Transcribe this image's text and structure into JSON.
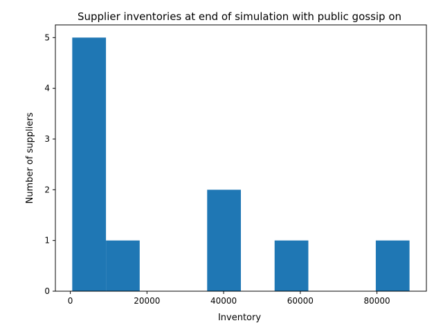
{
  "chart_data": {
    "type": "bar",
    "subtype": "histogram",
    "title": "Supplier inventories at end of simulation with public gossip on",
    "xlabel": "Inventory",
    "ylabel": "Number of suppliers",
    "bins": [
      {
        "start": 500,
        "end": 9300,
        "count": 5
      },
      {
        "start": 9300,
        "end": 18100,
        "count": 1
      },
      {
        "start": 18100,
        "end": 26900,
        "count": 0
      },
      {
        "start": 26900,
        "end": 35700,
        "count": 0
      },
      {
        "start": 35700,
        "end": 44500,
        "count": 2
      },
      {
        "start": 44500,
        "end": 53300,
        "count": 0
      },
      {
        "start": 53300,
        "end": 62100,
        "count": 1
      },
      {
        "start": 62100,
        "end": 70900,
        "count": 0
      },
      {
        "start": 70900,
        "end": 79700,
        "count": 0
      },
      {
        "start": 79700,
        "end": 88500,
        "count": 1
      }
    ],
    "xlim": [
      -3900,
      92900
    ],
    "ylim": [
      0,
      5.25
    ],
    "xticks": [
      0,
      20000,
      40000,
      60000,
      80000
    ],
    "yticks": [
      0,
      1,
      2,
      3,
      4,
      5
    ],
    "bar_color": "#1f77b4",
    "grid": false,
    "legend": "none"
  }
}
